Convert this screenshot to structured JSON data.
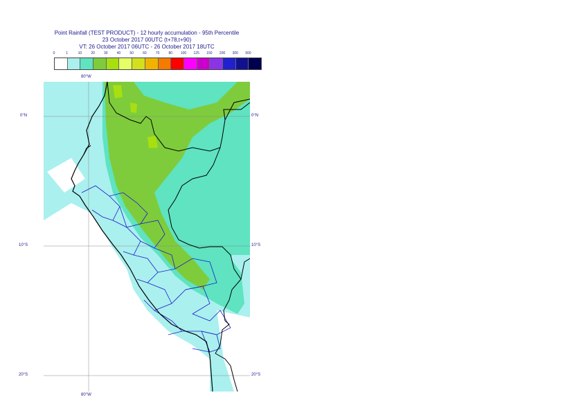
{
  "title": {
    "line1": "Point Rainfall (TEST PRODUCT) - 12 hourly accumulation - 95th Percentile",
    "line2": "23 October 2017 00UTC (t+78,t+90)",
    "line3": "VT: 26 October 2017 06UTC - 26 October 2017 18UTC"
  },
  "legend": {
    "labels": [
      "0",
      "1",
      "10",
      "20",
      "30",
      "40",
      "50",
      "60",
      "70",
      "80",
      "100",
      "125",
      "150",
      "200",
      "300",
      "500"
    ],
    "colors": [
      "#ffffff",
      "#aaf0ee",
      "#5fe3c0",
      "#7ecc3c",
      "#a8df10",
      "#e6ff66",
      "#d2e01e",
      "#f0b400",
      "#f57a00",
      "#ff0000",
      "#ff00ff",
      "#cc00cc",
      "#8a34e6",
      "#2020d0",
      "#111190",
      "#000050"
    ]
  },
  "map": {
    "colors": {
      "ocean": "#aaf0ee",
      "dry": "#ffffff",
      "moderate": "#5fe3c0",
      "heavy": "#7ecc3c",
      "very_heavy": "#a8df10",
      "coast": "#000000",
      "border": "#000000",
      "admin": "#1a1acc",
      "grid": "#888888"
    },
    "lat_labels_left": [
      "0°N",
      "10°S",
      "20°S"
    ],
    "lat_labels_right": [
      "0°N",
      "10°S",
      "20°S"
    ],
    "lon_label_top": "80°W",
    "lon_label_bottom": "80°W"
  }
}
